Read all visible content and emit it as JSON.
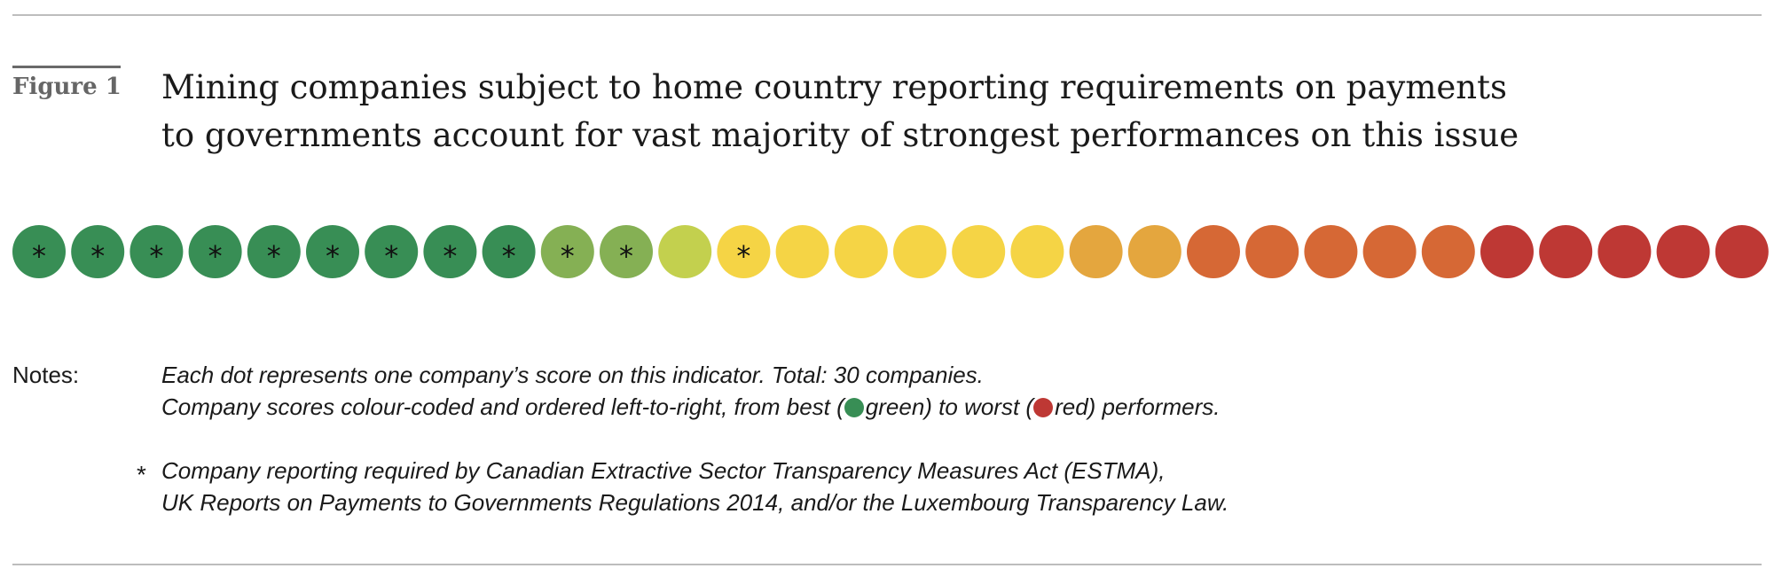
{
  "figure": {
    "label": "Figure 1",
    "title_lines": [
      "Mining companies subject to home country reporting requirements on payments",
      "to governments account for vast majority of strongest performances on this issue"
    ]
  },
  "chart_data": {
    "type": "scatter",
    "total_companies": 30,
    "order": "best (left) to worst (right)",
    "marker_symbol": "*",
    "palette": {
      "dark-green": "#388E55",
      "light-green": "#85B054",
      "yellow-green": "#C3D04E",
      "yellow": "#F5D445",
      "amber": "#E4A63E",
      "orange": "#D66835",
      "red": "#BE3834"
    },
    "companies": [
      {
        "rank": 1,
        "color": "dark-green",
        "mandatory_reporting": true
      },
      {
        "rank": 2,
        "color": "dark-green",
        "mandatory_reporting": true
      },
      {
        "rank": 3,
        "color": "dark-green",
        "mandatory_reporting": true
      },
      {
        "rank": 4,
        "color": "dark-green",
        "mandatory_reporting": true
      },
      {
        "rank": 5,
        "color": "dark-green",
        "mandatory_reporting": true
      },
      {
        "rank": 6,
        "color": "dark-green",
        "mandatory_reporting": true
      },
      {
        "rank": 7,
        "color": "dark-green",
        "mandatory_reporting": true
      },
      {
        "rank": 8,
        "color": "dark-green",
        "mandatory_reporting": true
      },
      {
        "rank": 9,
        "color": "dark-green",
        "mandatory_reporting": true
      },
      {
        "rank": 10,
        "color": "light-green",
        "mandatory_reporting": true
      },
      {
        "rank": 11,
        "color": "light-green",
        "mandatory_reporting": true
      },
      {
        "rank": 12,
        "color": "yellow-green",
        "mandatory_reporting": false
      },
      {
        "rank": 13,
        "color": "yellow",
        "mandatory_reporting": true
      },
      {
        "rank": 14,
        "color": "yellow",
        "mandatory_reporting": false
      },
      {
        "rank": 15,
        "color": "yellow",
        "mandatory_reporting": false
      },
      {
        "rank": 16,
        "color": "yellow",
        "mandatory_reporting": false
      },
      {
        "rank": 17,
        "color": "yellow",
        "mandatory_reporting": false
      },
      {
        "rank": 18,
        "color": "yellow",
        "mandatory_reporting": false
      },
      {
        "rank": 19,
        "color": "amber",
        "mandatory_reporting": false
      },
      {
        "rank": 20,
        "color": "amber",
        "mandatory_reporting": false
      },
      {
        "rank": 21,
        "color": "orange",
        "mandatory_reporting": false
      },
      {
        "rank": 22,
        "color": "orange",
        "mandatory_reporting": false
      },
      {
        "rank": 23,
        "color": "orange",
        "mandatory_reporting": false
      },
      {
        "rank": 24,
        "color": "orange",
        "mandatory_reporting": false
      },
      {
        "rank": 25,
        "color": "orange",
        "mandatory_reporting": false
      },
      {
        "rank": 26,
        "color": "red",
        "mandatory_reporting": false
      },
      {
        "rank": 27,
        "color": "red",
        "mandatory_reporting": false
      },
      {
        "rank": 28,
        "color": "red",
        "mandatory_reporting": false
      },
      {
        "rank": 29,
        "color": "red",
        "mandatory_reporting": false
      },
      {
        "rank": 30,
        "color": "red",
        "mandatory_reporting": false
      }
    ]
  },
  "notes": {
    "label": "Notes:",
    "line1": "Each dot represents one company’s score on this indicator. Total: 30 companies.",
    "line2_prefix": "Company scores colour-coded and ordered left-to-right, from best (",
    "line2_best": "green",
    "line2_middle": ") to worst (",
    "line2_worst": "red",
    "line2_suffix": ") performers.",
    "best_color": "#388E55",
    "worst_color": "#BE3834",
    "footnote_symbol": "*",
    "footnote_line1": "Company reporting required by Canadian Extractive Sector Transparency Measures Act (ESTMA),",
    "footnote_line2": "UK Reports on Payments to Governments Regulations 2014, and/or the Luxembourg Transparency Law."
  }
}
